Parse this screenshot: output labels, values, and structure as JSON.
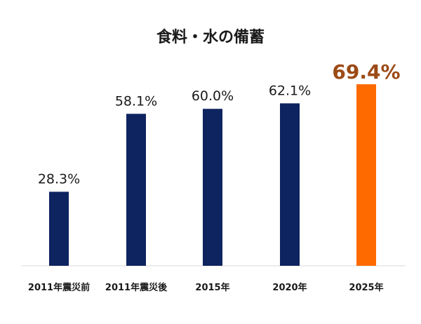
{
  "chart_data": {
    "type": "bar",
    "title": "食料・水の備蓄",
    "categories": [
      "2011年震災前",
      "2011年震災後",
      "2015年",
      "2020年",
      "2025年"
    ],
    "values": [
      28.3,
      58.1,
      60.0,
      62.1,
      69.4
    ],
    "value_labels": [
      "28.3%",
      "58.1%",
      "60.0%",
      "62.1%",
      "69.4%"
    ],
    "ylim": [
      0,
      100
    ],
    "grid": false,
    "legend": "none",
    "colors": {
      "bar": "#0e2460",
      "highlight_bar": "#ff6a00",
      "label": "#1a1a1a",
      "highlight_label": "#9c4a16",
      "axis": "#d9d9d9"
    },
    "highlight_index": 4
  }
}
